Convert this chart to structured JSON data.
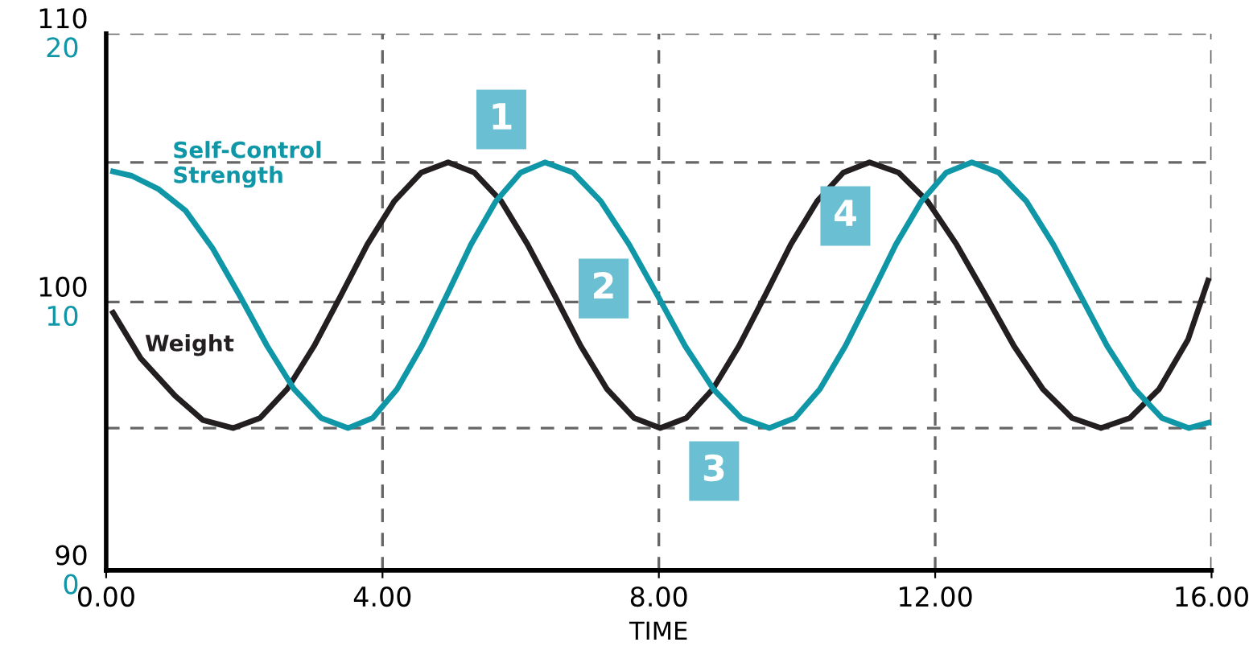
{
  "chart_data": {
    "type": "line",
    "xlabel": "TIME",
    "xlim": [
      0,
      16
    ],
    "xticks": [
      {
        "value": 0,
        "label": "0.00"
      },
      {
        "value": 4,
        "label": "4.00"
      },
      {
        "value": 8,
        "label": "8.00"
      },
      {
        "value": 12,
        "label": "12.00"
      },
      {
        "value": 16,
        "label": "16.00"
      }
    ],
    "ylim": [
      90,
      110
    ],
    "yticks": [
      90,
      100,
      110
    ],
    "y2lim": [
      0,
      20
    ],
    "y2ticks": [
      0,
      10,
      20
    ],
    "grid": true,
    "legend": false,
    "marker": "none",
    "line_style": "solid",
    "series": [
      {
        "name": "Weight",
        "color": "#231f20",
        "x": [
          0.1,
          0.5,
          1.0,
          1.4,
          1.84,
          2.23,
          2.62,
          3.01,
          3.4,
          3.78,
          4.17,
          4.56,
          4.95,
          5.33,
          5.72,
          6.1,
          6.49,
          6.87,
          7.25,
          7.64,
          8.02,
          8.4,
          8.78,
          9.16,
          9.54,
          9.91,
          10.29,
          10.67,
          11.05,
          11.47,
          11.89,
          12.31,
          12.73,
          13.14,
          13.56,
          13.98,
          14.4,
          14.82,
          15.24,
          15.66,
          15.95
        ],
        "values": [
          99.6,
          97.9,
          96.5,
          95.6,
          95.3,
          95.68,
          96.75,
          98.36,
          100.25,
          102.14,
          103.75,
          104.82,
          105.2,
          104.82,
          103.75,
          102.14,
          100.25,
          98.36,
          96.75,
          95.68,
          95.3,
          95.68,
          96.75,
          98.36,
          100.25,
          102.14,
          103.75,
          104.82,
          105.2,
          104.82,
          103.75,
          102.14,
          100.25,
          98.36,
          96.75,
          95.68,
          95.3,
          95.68,
          96.75,
          98.6,
          100.8
        ]
      },
      {
        "name": "Self-Control\nStrength",
        "color": "#0f97a8",
        "axis": "y2",
        "x": [
          0.1,
          0.37,
          0.76,
          1.15,
          1.54,
          1.93,
          2.33,
          2.72,
          3.11,
          3.5,
          3.86,
          4.21,
          4.57,
          4.93,
          5.28,
          5.64,
          6.0,
          6.35,
          6.76,
          7.16,
          7.57,
          7.98,
          8.38,
          8.79,
          9.19,
          9.6,
          9.97,
          10.33,
          10.7,
          11.07,
          11.43,
          11.8,
          12.16,
          12.53,
          12.92,
          13.32,
          13.71,
          14.1,
          14.49,
          14.89,
          15.28,
          15.67,
          15.95
        ],
        "values": [
          14.86,
          14.7,
          14.2,
          13.4,
          12.0,
          10.25,
          8.36,
          6.75,
          5.68,
          5.3,
          5.68,
          6.75,
          8.36,
          10.25,
          12.14,
          13.75,
          14.82,
          15.2,
          14.82,
          13.75,
          12.14,
          10.25,
          8.36,
          6.75,
          5.68,
          5.3,
          5.68,
          6.75,
          8.36,
          10.25,
          12.14,
          13.75,
          14.82,
          15.2,
          14.82,
          13.75,
          12.14,
          10.25,
          8.36,
          6.75,
          5.68,
          5.3,
          5.5
        ]
      }
    ],
    "ref_lines": [
      {
        "axis": "y",
        "value": 105.2,
        "color": "#666666",
        "line_style": "dashed"
      },
      {
        "axis": "y",
        "value": 95.3,
        "color": "#666666",
        "line_style": "dashed"
      }
    ],
    "annotations": [
      {
        "text": "1",
        "x": 5.72,
        "y": 106.8
      },
      {
        "text": "2",
        "x": 7.2,
        "y": 100.5
      },
      {
        "text": "3",
        "x": 8.8,
        "y": 93.7
      },
      {
        "text": "4",
        "x": 10.7,
        "y": 103.2
      }
    ]
  }
}
